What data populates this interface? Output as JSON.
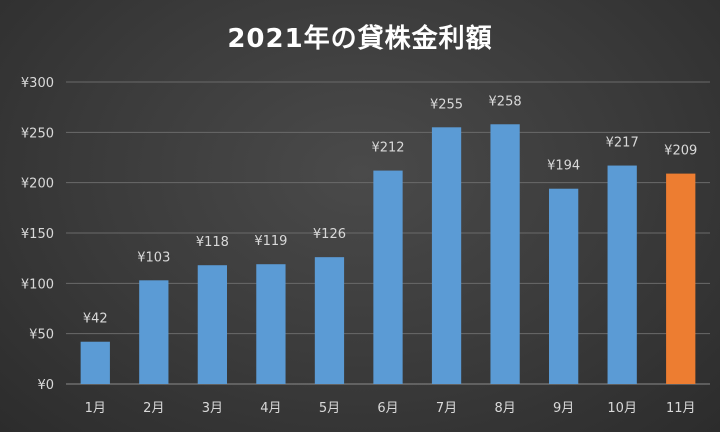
{
  "chart_data": {
    "type": "bar",
    "title": "2021年の貸株金利額",
    "categories": [
      "1月",
      "2月",
      "3月",
      "4月",
      "5月",
      "6月",
      "7月",
      "8月",
      "9月",
      "10月",
      "11月"
    ],
    "values": [
      42,
      103,
      118,
      119,
      126,
      212,
      255,
      258,
      194,
      217,
      209
    ],
    "data_labels": [
      "¥42",
      "¥103",
      "¥118",
      "¥119",
      "¥126",
      "¥212",
      "¥255",
      "¥258",
      "¥194",
      "¥217",
      "¥209"
    ],
    "y_ticks": [
      0,
      50,
      100,
      150,
      200,
      250,
      300
    ],
    "y_tick_labels": [
      "¥0",
      "¥50",
      "¥100",
      "¥150",
      "¥200",
      "¥250",
      "¥300"
    ],
    "ylim": [
      0,
      300
    ],
    "grid": true,
    "xlabel": "",
    "ylabel": "",
    "colors": {
      "bar": "#5b9bd5",
      "highlight": "#ed7d31",
      "grid": "#6a6a6a",
      "axis": "#8a8a8a"
    },
    "highlight_index": 10
  }
}
